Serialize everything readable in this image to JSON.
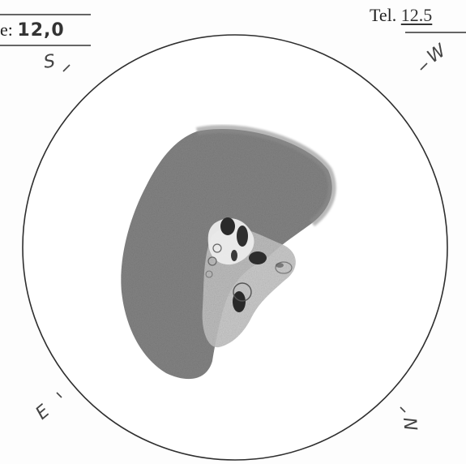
{
  "top_left_field": {
    "label": "e:",
    "value": "12,0"
  },
  "top_right_field": {
    "label": "Tel.",
    "value": "12.5"
  },
  "direction_labels": {
    "s": "S",
    "w": "W",
    "e": "E",
    "n": "N"
  },
  "drawing": {
    "subject": "pencil sketch of lunar terminator region with craters",
    "colors": {
      "ink": "#333333",
      "shadow": "#6e6e6e",
      "light_shading": "#bdbdbd",
      "crater_dark": "#2a2a2a"
    }
  }
}
